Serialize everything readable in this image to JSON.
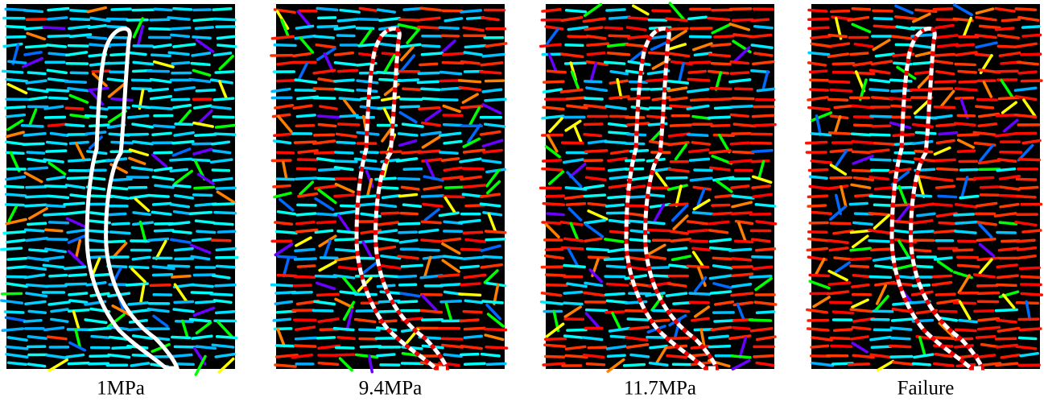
{
  "panels": [
    {
      "caption": "1MPa"
    },
    {
      "caption": "9.4MPa"
    },
    {
      "caption": "11.7MPa"
    },
    {
      "caption": "Failure"
    }
  ]
}
